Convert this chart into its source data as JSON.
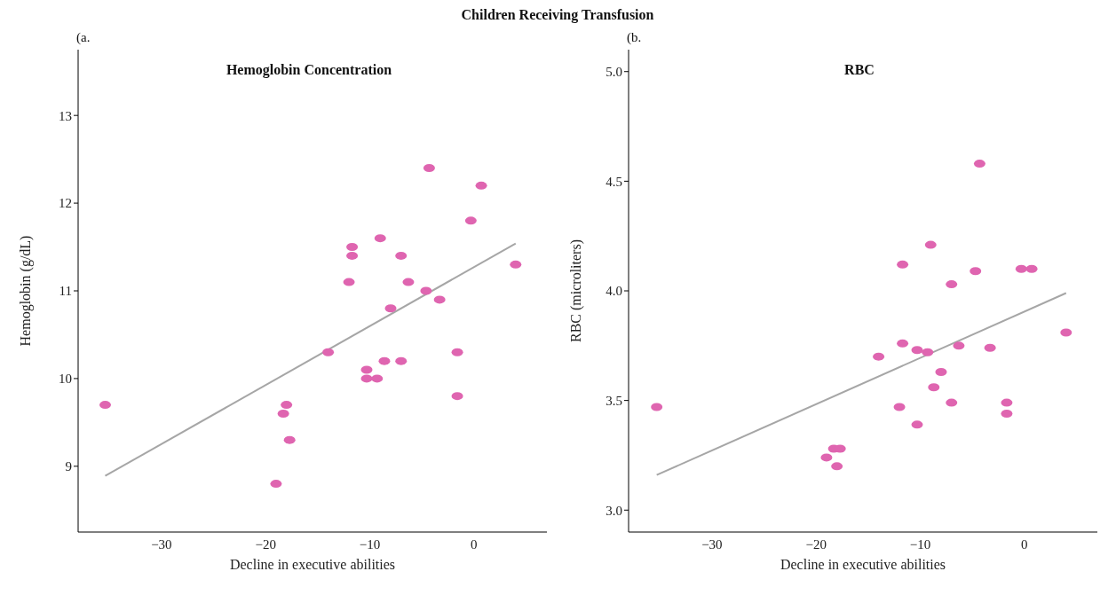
{
  "chart_data": [
    {
      "type": "scatter",
      "title": "Hemoglobin Concentration",
      "xlabel": "Decline in executive abilities",
      "ylabel": "Hemoglobin (g/dL)",
      "annotations": [
        "Children Receiving Transfusion",
        "(a."
      ],
      "xlim": [
        -38,
        7
      ],
      "ylim": [
        8.25,
        13.75
      ],
      "xticks": [
        {
          "value": -30,
          "label": "−30"
        },
        {
          "value": -20,
          "label": "−20"
        },
        {
          "value": -10,
          "label": "−10"
        },
        0
      ],
      "yticks": [
        9,
        10,
        11,
        12,
        13
      ],
      "series": [
        {
          "marker": "circle",
          "color": "#df65b0",
          "x": [
            -35.4,
            -4.3,
            0.7,
            -0.3,
            -9.0,
            -11.7,
            -11.7,
            -7.0,
            4.0,
            -12.0,
            -6.3,
            -4.6,
            -3.3,
            -8.0,
            -14.0,
            -1.6,
            -8.6,
            -7.0,
            -10.3,
            -10.3,
            -9.3,
            -1.6,
            -18.0,
            -18.3,
            -17.7,
            -19.0
          ],
          "values": [
            9.7,
            12.4,
            12.2,
            11.8,
            11.6,
            11.5,
            11.4,
            11.4,
            11.3,
            11.1,
            11.1,
            11.0,
            10.9,
            10.8,
            10.3,
            10.3,
            10.2,
            10.2,
            10.1,
            10.0,
            10.0,
            9.8,
            9.7,
            9.6,
            9.3,
            8.8
          ]
        },
        {
          "type": "line",
          "color": "#a6a6a6",
          "x": [
            -35.4,
            4.0
          ],
          "values": [
            8.89,
            11.54
          ]
        }
      ]
    },
    {
      "type": "scatter",
      "title": "RBC",
      "xlabel": "Decline in executive abilities",
      "ylabel": "RBC (microliters)",
      "annotations": [
        "(b."
      ],
      "xlim": [
        -38,
        7
      ],
      "ylim": [
        2.9,
        5.1
      ],
      "xticks": [
        {
          "value": -30,
          "label": "−30"
        },
        {
          "value": -20,
          "label": "−20"
        },
        {
          "value": -10,
          "label": "−10"
        },
        0
      ],
      "yticks": [
        {
          "value": 3,
          "label": "3.0"
        },
        3.5,
        {
          "value": 4,
          "label": "4.0"
        },
        4.5,
        {
          "value": 5,
          "label": "5.0"
        }
      ],
      "series": [
        {
          "marker": "circle",
          "color": "#df65b0",
          "x": [
            -35.3,
            -4.3,
            -9.0,
            -11.7,
            -4.7,
            -0.3,
            0.7,
            -7.0,
            4.0,
            -11.7,
            -10.3,
            -9.3,
            -6.3,
            -3.3,
            -14.0,
            -8.0,
            -8.7,
            -7.0,
            -1.7,
            -12.0,
            -1.7,
            -10.3,
            -18.3,
            -17.7,
            -19.0,
            -18.0
          ],
          "values": [
            3.47,
            4.58,
            4.21,
            4.12,
            4.09,
            4.1,
            4.1,
            4.03,
            3.81,
            3.76,
            3.73,
            3.72,
            3.75,
            3.74,
            3.7,
            3.63,
            3.56,
            3.49,
            3.49,
            3.47,
            3.44,
            3.39,
            3.28,
            3.28,
            3.24,
            3.2
          ]
        },
        {
          "type": "line",
          "color": "#a6a6a6",
          "x": [
            -35.3,
            4.0
          ],
          "values": [
            3.16,
            3.99
          ]
        }
      ]
    }
  ]
}
